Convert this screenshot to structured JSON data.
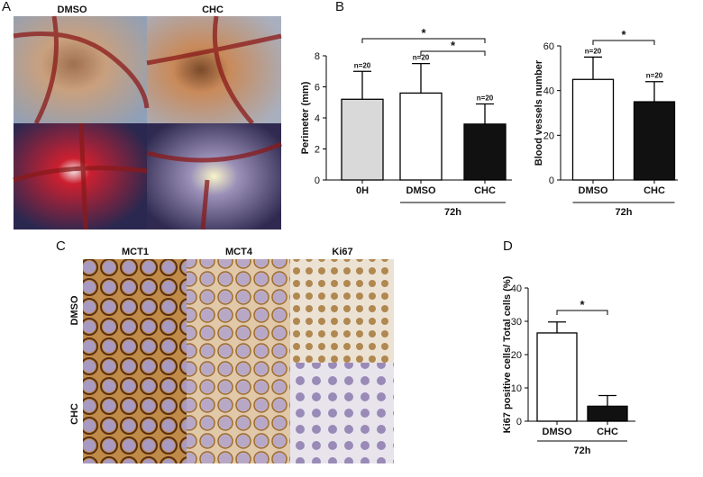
{
  "panels": {
    "a": "A",
    "b": "B",
    "c": "C",
    "d": "D"
  },
  "photo_labels": {
    "a_cols": [
      "DMSO",
      "CHC"
    ],
    "c_cols": [
      "MCT1",
      "MCT4",
      "Ki67"
    ],
    "c_rows": [
      "DMSO",
      "CHC"
    ]
  },
  "chart_data": [
    {
      "type": "bar",
      "y_label": "Perimeter  (mm)",
      "categories": [
        "0H",
        "DMSO",
        "CHC"
      ],
      "values": [
        5.2,
        5.6,
        3.6
      ],
      "errors": [
        1.8,
        1.9,
        1.3
      ],
      "colors": [
        "#d9d9d9",
        "#ffffff",
        "#111111"
      ],
      "bar_notes": [
        "n=20",
        "n=20",
        "n=20"
      ],
      "ylim": [
        0,
        8
      ],
      "yticks": [
        0,
        2,
        4,
        6,
        8
      ],
      "significance": [
        {
          "from": 0,
          "to": 2,
          "label": "*"
        },
        {
          "from": 1,
          "to": 2,
          "label": "*"
        }
      ],
      "group": {
        "label": "72h",
        "from": 1,
        "to": 2
      }
    },
    {
      "type": "bar",
      "y_label": "Blood vessels number",
      "categories": [
        "DMSO",
        "CHC"
      ],
      "values": [
        45,
        35
      ],
      "errors": [
        10,
        9
      ],
      "colors": [
        "#ffffff",
        "#111111"
      ],
      "bar_notes": [
        "n=20",
        "n=20"
      ],
      "ylim": [
        0,
        60
      ],
      "yticks": [
        0,
        20,
        40,
        60
      ],
      "significance": [
        {
          "from": 0,
          "to": 1,
          "label": "*"
        }
      ],
      "group": {
        "label": "72h",
        "from": 0,
        "to": 1
      }
    },
    {
      "type": "bar",
      "y_label": "Ki67 positive cells/ Total cells (%)",
      "categories": [
        "DMSO",
        "CHC"
      ],
      "values": [
        26.5,
        4.5
      ],
      "errors": [
        3.3,
        3.2
      ],
      "colors": [
        "#ffffff",
        "#111111"
      ],
      "ylim": [
        0,
        40
      ],
      "yticks": [
        0,
        10,
        20,
        30,
        40
      ],
      "significance": [
        {
          "from": 0,
          "to": 1,
          "label": "*"
        }
      ],
      "group": {
        "label": "72h",
        "from": 0,
        "to": 1
      }
    }
  ]
}
